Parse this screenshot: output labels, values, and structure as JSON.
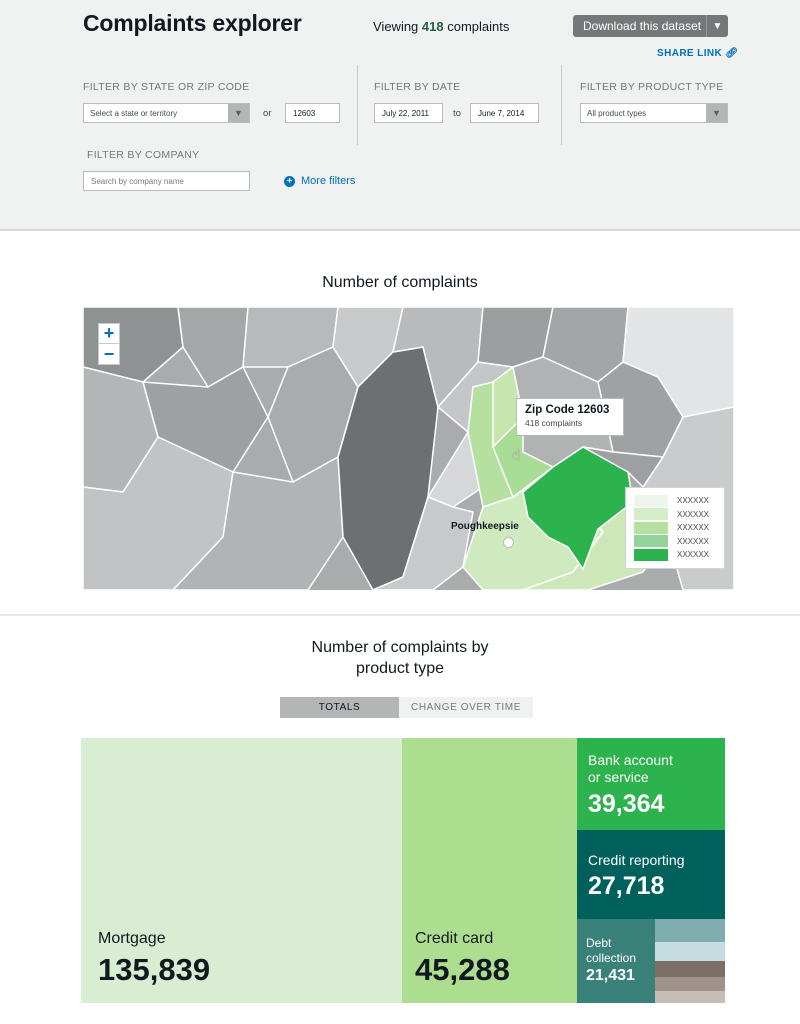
{
  "header": {
    "title": "Complaints explorer",
    "viewing_prefix": "Viewing",
    "viewing_count": "418",
    "viewing_suffix": "complaints",
    "download_label": "Download this dataset",
    "share_link": "SHARE LINK"
  },
  "filters": {
    "state_label": "FILTER BY STATE OR ZIP CODE",
    "state_placeholder": "Select a state or territory",
    "or_text": "or",
    "zip_value": "12603",
    "date_label": "FILTER BY DATE",
    "date_from": "July 22, 2011",
    "to_text": "to",
    "date_to": "June 7, 2014",
    "product_label": "FILTER BY PRODUCT TYPE",
    "product_value": "All product types",
    "company_label": "FILTER BY COMPANY",
    "company_placeholder": "Search by company name",
    "more_filters": "More filters"
  },
  "map": {
    "title": "Number of complaints",
    "zoom_in": "+",
    "zoom_out": "−",
    "tooltip_title": "Zip Code 12603",
    "tooltip_count": "418 complaints",
    "city": "Poughkeepsie",
    "legend": [
      {
        "label": "XXXXXX",
        "color": "#eef6ec"
      },
      {
        "label": "XXXXXX",
        "color": "#d5ecc9"
      },
      {
        "label": "XXXXXX",
        "color": "#b6e0a0"
      },
      {
        "label": "XXXXXX",
        "color": "#93d49a"
      },
      {
        "label": "XXXXXX",
        "color": "#2db34d"
      }
    ]
  },
  "products": {
    "title_line1": "Number of complaints by",
    "title_line2": "product type",
    "tab_totals": "TOTALS",
    "tab_change": "CHANGE OVER TIME",
    "items": [
      {
        "name": "Mortgage",
        "value": "135,839"
      },
      {
        "name": "Credit card",
        "value": "45,288"
      },
      {
        "name_line1": "Bank account",
        "name_line2": "or service",
        "value": "39,364"
      },
      {
        "name": "Credit reporting",
        "value": "27,718"
      },
      {
        "name_line1": "Debt",
        "name_line2": "collection",
        "value": "21,431"
      }
    ]
  }
}
